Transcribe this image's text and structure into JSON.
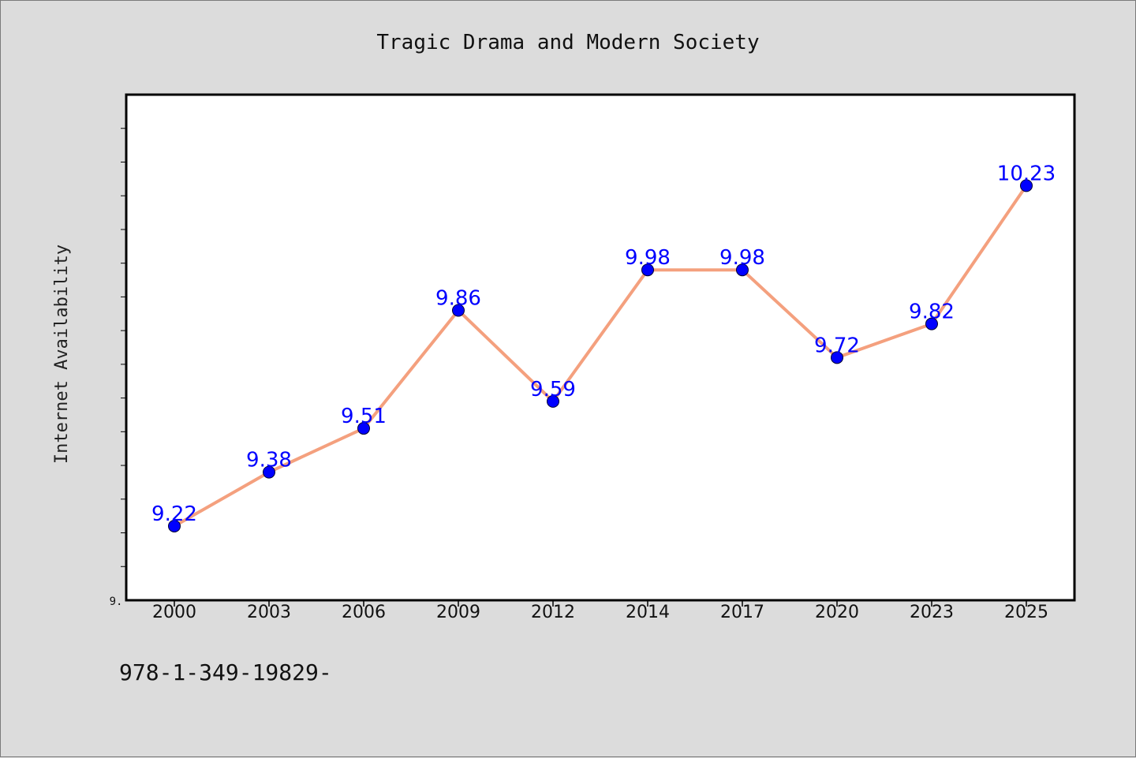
{
  "chart_data": {
    "type": "line",
    "title": "Tragic Drama and Modern Society",
    "xlabel": "",
    "ylabel": "Internet Availability",
    "categories": [
      "2000",
      "2003",
      "2006",
      "2009",
      "2012",
      "2014",
      "2017",
      "2020",
      "2023",
      "2025"
    ],
    "series": [
      {
        "values": [
          9.22,
          9.38,
          9.51,
          9.86,
          9.59,
          9.98,
          9.98,
          9.72,
          9.82,
          10.23
        ]
      }
    ],
    "data_labels": [
      "9.22",
      "9.38",
      "9.51",
      "9.86",
      "9.59",
      "9.98",
      "9.98",
      "9.72",
      "9.82",
      "10.23"
    ],
    "ylim": [
      9.0,
      10.5
    ],
    "ytick_label": "9.",
    "grid": false,
    "legend": "none",
    "line_color": "#f4a07e",
    "marker_color": "#0000ff",
    "label_color": "#0000ff"
  },
  "footer": {
    "text": "978-1-349-19829-"
  }
}
